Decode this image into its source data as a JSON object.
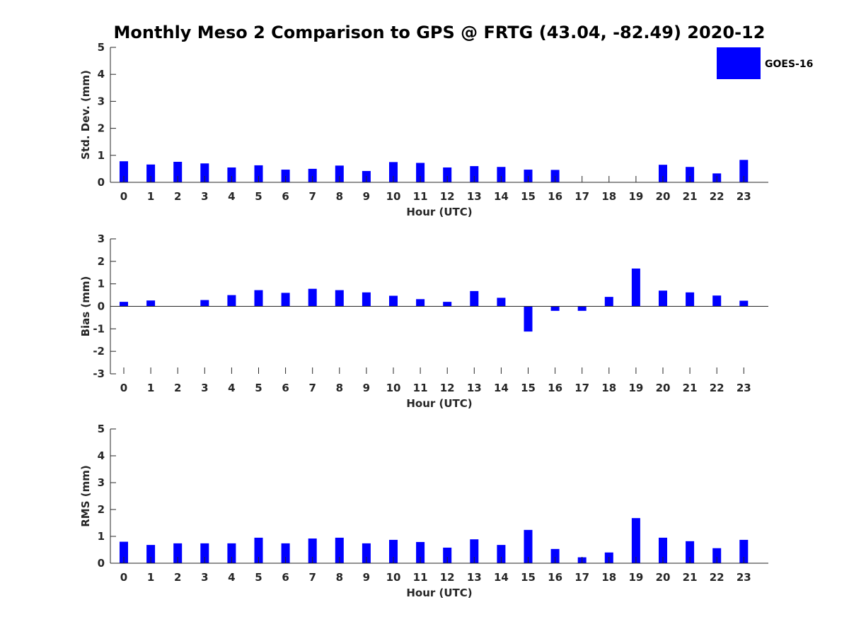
{
  "title": "Monthly Meso 2 Comparison to GPS @ FRTG (43.04, -82.49) 2020-12",
  "colors": {
    "bar": "#0000ff",
    "axis": "#262626"
  },
  "legend": {
    "label": "GOES-16",
    "placement": "top-right"
  },
  "chart_data": [
    {
      "type": "bar",
      "name": "std-dev",
      "xlabel": "Hour (UTC)",
      "ylabel": "Std. Dev. (mm)",
      "ylim": [
        0,
        5
      ],
      "yticks": [
        0,
        1,
        2,
        3,
        4,
        5
      ],
      "categories": [
        "0",
        "1",
        "2",
        "3",
        "4",
        "5",
        "6",
        "7",
        "8",
        "9",
        "10",
        "11",
        "12",
        "13",
        "14",
        "15",
        "16",
        "17",
        "18",
        "19",
        "20",
        "21",
        "22",
        "23"
      ],
      "series": [
        {
          "name": "GOES-16",
          "values": [
            0.78,
            0.66,
            0.76,
            0.7,
            0.55,
            0.63,
            0.47,
            0.5,
            0.62,
            0.42,
            0.75,
            0.72,
            0.55,
            0.6,
            0.57,
            0.47,
            0.46,
            null,
            null,
            null,
            0.65,
            0.57,
            0.33,
            0.83
          ]
        }
      ]
    },
    {
      "type": "bar",
      "name": "bias",
      "xlabel": "Hour (UTC)",
      "ylabel": "Bias (mm)",
      "ylim": [
        -3,
        3
      ],
      "yticks": [
        -3,
        -2,
        -1,
        0,
        1,
        2,
        3
      ],
      "categories": [
        "0",
        "1",
        "2",
        "3",
        "4",
        "5",
        "6",
        "7",
        "8",
        "9",
        "10",
        "11",
        "12",
        "13",
        "14",
        "15",
        "16",
        "17",
        "18",
        "19",
        "20",
        "21",
        "22",
        "23"
      ],
      "series": [
        {
          "name": "GOES-16",
          "values": [
            0.2,
            0.26,
            0.0,
            0.28,
            0.5,
            0.72,
            0.6,
            0.78,
            0.72,
            0.62,
            0.47,
            0.32,
            0.2,
            0.68,
            0.38,
            -1.12,
            -0.2,
            -0.2,
            0.42,
            1.68,
            0.7,
            0.62,
            0.48,
            0.25
          ]
        }
      ]
    },
    {
      "type": "bar",
      "name": "rms",
      "xlabel": "Hour (UTC)",
      "ylabel": "RMS (mm)",
      "ylim": [
        0,
        5
      ],
      "yticks": [
        0,
        1,
        2,
        3,
        4,
        5
      ],
      "categories": [
        "0",
        "1",
        "2",
        "3",
        "4",
        "5",
        "6",
        "7",
        "8",
        "9",
        "10",
        "11",
        "12",
        "13",
        "14",
        "15",
        "16",
        "17",
        "18",
        "19",
        "20",
        "21",
        "22",
        "23"
      ],
      "series": [
        {
          "name": "GOES-16",
          "values": [
            0.8,
            0.68,
            0.74,
            0.74,
            0.74,
            0.95,
            0.74,
            0.92,
            0.95,
            0.74,
            0.87,
            0.79,
            0.58,
            0.89,
            0.68,
            1.24,
            0.53,
            0.22,
            0.4,
            1.68,
            0.95,
            0.82,
            0.56,
            0.87
          ]
        }
      ]
    }
  ]
}
